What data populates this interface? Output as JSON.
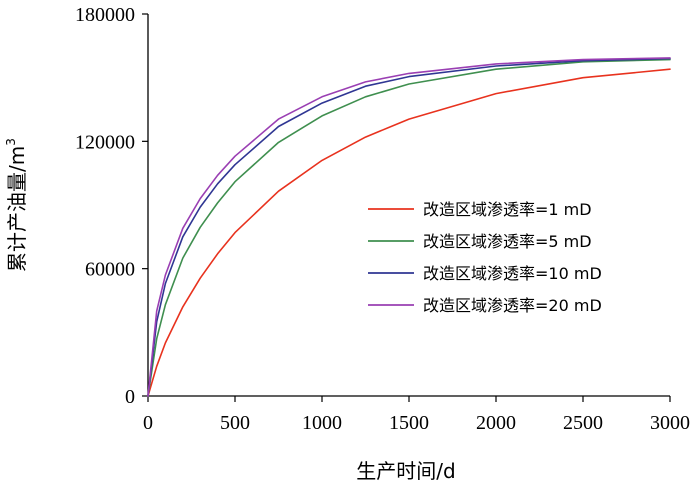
{
  "chart_data": {
    "type": "line",
    "title": "",
    "xlabel": "生产时间/d",
    "ylabel": "累计产油量/m",
    "ylabel_superscript": "3",
    "xlim": [
      0,
      3000
    ],
    "ylim": [
      0,
      180000
    ],
    "x_ticks": [
      "0",
      "500",
      "1000",
      "1500",
      "2000",
      "2500",
      "3000"
    ],
    "y_ticks": [
      "0",
      "60000",
      "120000",
      "180000"
    ],
    "legend_position": "center-right",
    "x": [
      0,
      50,
      100,
      200,
      300,
      400,
      500,
      750,
      1000,
      1250,
      1500,
      2000,
      2500,
      3000
    ],
    "series": [
      {
        "name": "改造区域渗透率=1 mD",
        "color": "#e8321e",
        "values": [
          0,
          14000,
          25000,
          42000,
          55500,
          67000,
          77000,
          96500,
          111000,
          122000,
          130500,
          142500,
          150000,
          154000
        ]
      },
      {
        "name": "改造区域渗透率=5 mD",
        "color": "#3f8f4f",
        "values": [
          0,
          27000,
          43000,
          65000,
          79500,
          91000,
          101000,
          119500,
          132000,
          141000,
          147000,
          154000,
          157500,
          158500
        ]
      },
      {
        "name": "改造区域渗透率=10 mD",
        "color": "#2f3693",
        "values": [
          0,
          35000,
          53000,
          75000,
          89000,
          100000,
          109000,
          127000,
          138000,
          146000,
          150500,
          155500,
          158000,
          159000
        ]
      },
      {
        "name": "改造区域渗透率=20 mD",
        "color": "#9a3fb3",
        "values": [
          0,
          40000,
          57000,
          79000,
          93000,
          104000,
          113000,
          130500,
          141000,
          148000,
          152000,
          156500,
          158500,
          159300
        ]
      }
    ]
  }
}
